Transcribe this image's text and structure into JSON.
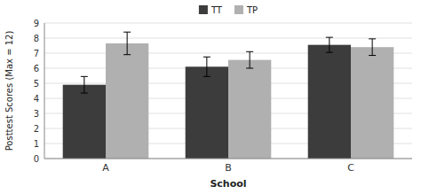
{
  "chart_data": {
    "type": "bar",
    "categories": [
      "A",
      "B",
      "C"
    ],
    "series": [
      {
        "name": "TT",
        "color": "#3c3c3c",
        "values": [
          4.9,
          6.1,
          7.55
        ],
        "errors": [
          0.55,
          0.65,
          0.5
        ]
      },
      {
        "name": "TP",
        "color": "#b0b0b0",
        "values": [
          7.65,
          6.55,
          7.4
        ],
        "errors": [
          0.75,
          0.55,
          0.55
        ]
      }
    ],
    "xlabel": "School",
    "ylabel": "Posttest Scores (Max = 12)",
    "ylim": [
      0,
      9
    ],
    "yticks": [
      0,
      1,
      2,
      3,
      4,
      5,
      6,
      7,
      8,
      9
    ],
    "grid": true,
    "legend": "top"
  }
}
